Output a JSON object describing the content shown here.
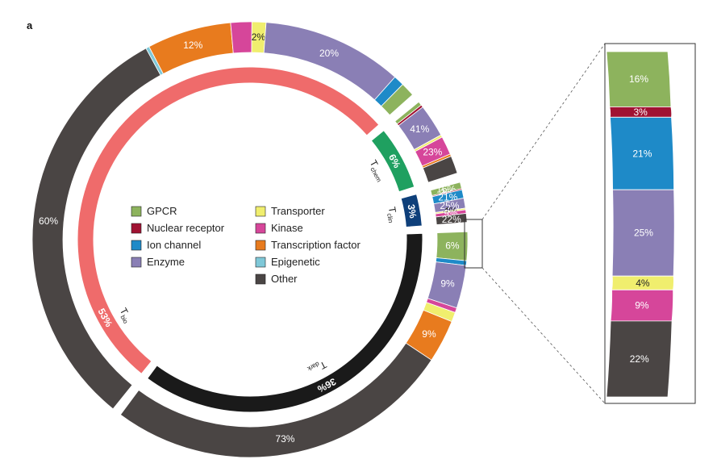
{
  "panel_label": "a",
  "legend": [
    {
      "name": "GPCR",
      "color": "#8db35d"
    },
    {
      "name": "Nuclear receptor",
      "color": "#a01232"
    },
    {
      "name": "Ion channel",
      "color": "#1e8ac8"
    },
    {
      "name": "Enzyme",
      "color": "#8a7fb5"
    },
    {
      "name": "Transporter",
      "color": "#f0ee6e"
    },
    {
      "name": "Kinase",
      "color": "#d6469a"
    },
    {
      "name": "Transcription factor",
      "color": "#e87b1e"
    },
    {
      "name": "Epigenetic",
      "color": "#7fc8d8"
    },
    {
      "name": "Other",
      "color": "#4a4544"
    }
  ],
  "chart_data": {
    "type": "pie",
    "inner_ring": [
      {
        "name": "T",
        "subscript": "bio",
        "label": "53%",
        "value": 53,
        "color": "#ef6b6b"
      },
      {
        "name": "T",
        "subscript": "chem",
        "label": "6%",
        "value": 6,
        "color": "#1fa060"
      },
      {
        "name": "T",
        "subscript": "clin",
        "label": "3%",
        "value": 3,
        "color": "#0e3f7a"
      },
      {
        "name": "T",
        "subscript": "dark",
        "label": "36%",
        "value": 36,
        "color": "#1a1a1a"
      }
    ],
    "outer_ring": {
      "Tbio": [
        {
          "category": "Other",
          "value": 60,
          "label": "60%"
        },
        {
          "category": "Epigenetic",
          "value": 0.5,
          "label": ""
        },
        {
          "category": "Transcription factor",
          "value": 12,
          "label": "12%"
        },
        {
          "category": "Kinase",
          "value": 3,
          "label": ""
        },
        {
          "category": "Transporter",
          "value": 2,
          "label": "2%"
        },
        {
          "category": "Enzyme",
          "value": 20,
          "label": "20%"
        },
        {
          "category": "Ion channel",
          "value": 1.5,
          "label": ""
        },
        {
          "category": "GPCR",
          "value": 2,
          "label": ""
        }
      ],
      "Tchem": [
        {
          "category": "GPCR",
          "value": 5,
          "label": ""
        },
        {
          "category": "Nuclear receptor",
          "value": 3,
          "label": ""
        },
        {
          "category": "Enzyme",
          "value": 41,
          "label": "41%"
        },
        {
          "category": "Transporter",
          "value": 3,
          "label": ""
        },
        {
          "category": "Kinase",
          "value": 23,
          "label": "23%"
        },
        {
          "category": "Transcription factor",
          "value": 3,
          "label": ""
        },
        {
          "category": "Other",
          "value": 22,
          "label": ""
        }
      ],
      "Tclin": [
        {
          "category": "GPCR",
          "value": 16,
          "label": "16%"
        },
        {
          "category": "Nuclear receptor",
          "value": 3,
          "label": "3%"
        },
        {
          "category": "Ion channel",
          "value": 21,
          "label": "21%"
        },
        {
          "category": "Enzyme",
          "value": 25,
          "label": "25%"
        },
        {
          "category": "Transporter",
          "value": 4,
          "label": "4%"
        },
        {
          "category": "Kinase",
          "value": 9,
          "label": "9%"
        },
        {
          "category": "Other",
          "value": 22,
          "label": "22%"
        }
      ],
      "Tdark": [
        {
          "category": "GPCR",
          "value": 6,
          "label": "6%"
        },
        {
          "category": "Ion channel",
          "value": 1,
          "label": ""
        },
        {
          "category": "Enzyme",
          "value": 9,
          "label": "9%"
        },
        {
          "category": "Kinase",
          "value": 1,
          "label": ""
        },
        {
          "category": "Transporter",
          "value": 2,
          "label": ""
        },
        {
          "category": "Transcription factor",
          "value": 9,
          "label": "9%"
        },
        {
          "category": "Other",
          "value": 73,
          "label": "73%"
        }
      ]
    },
    "zoom_inset": "Tclin"
  }
}
